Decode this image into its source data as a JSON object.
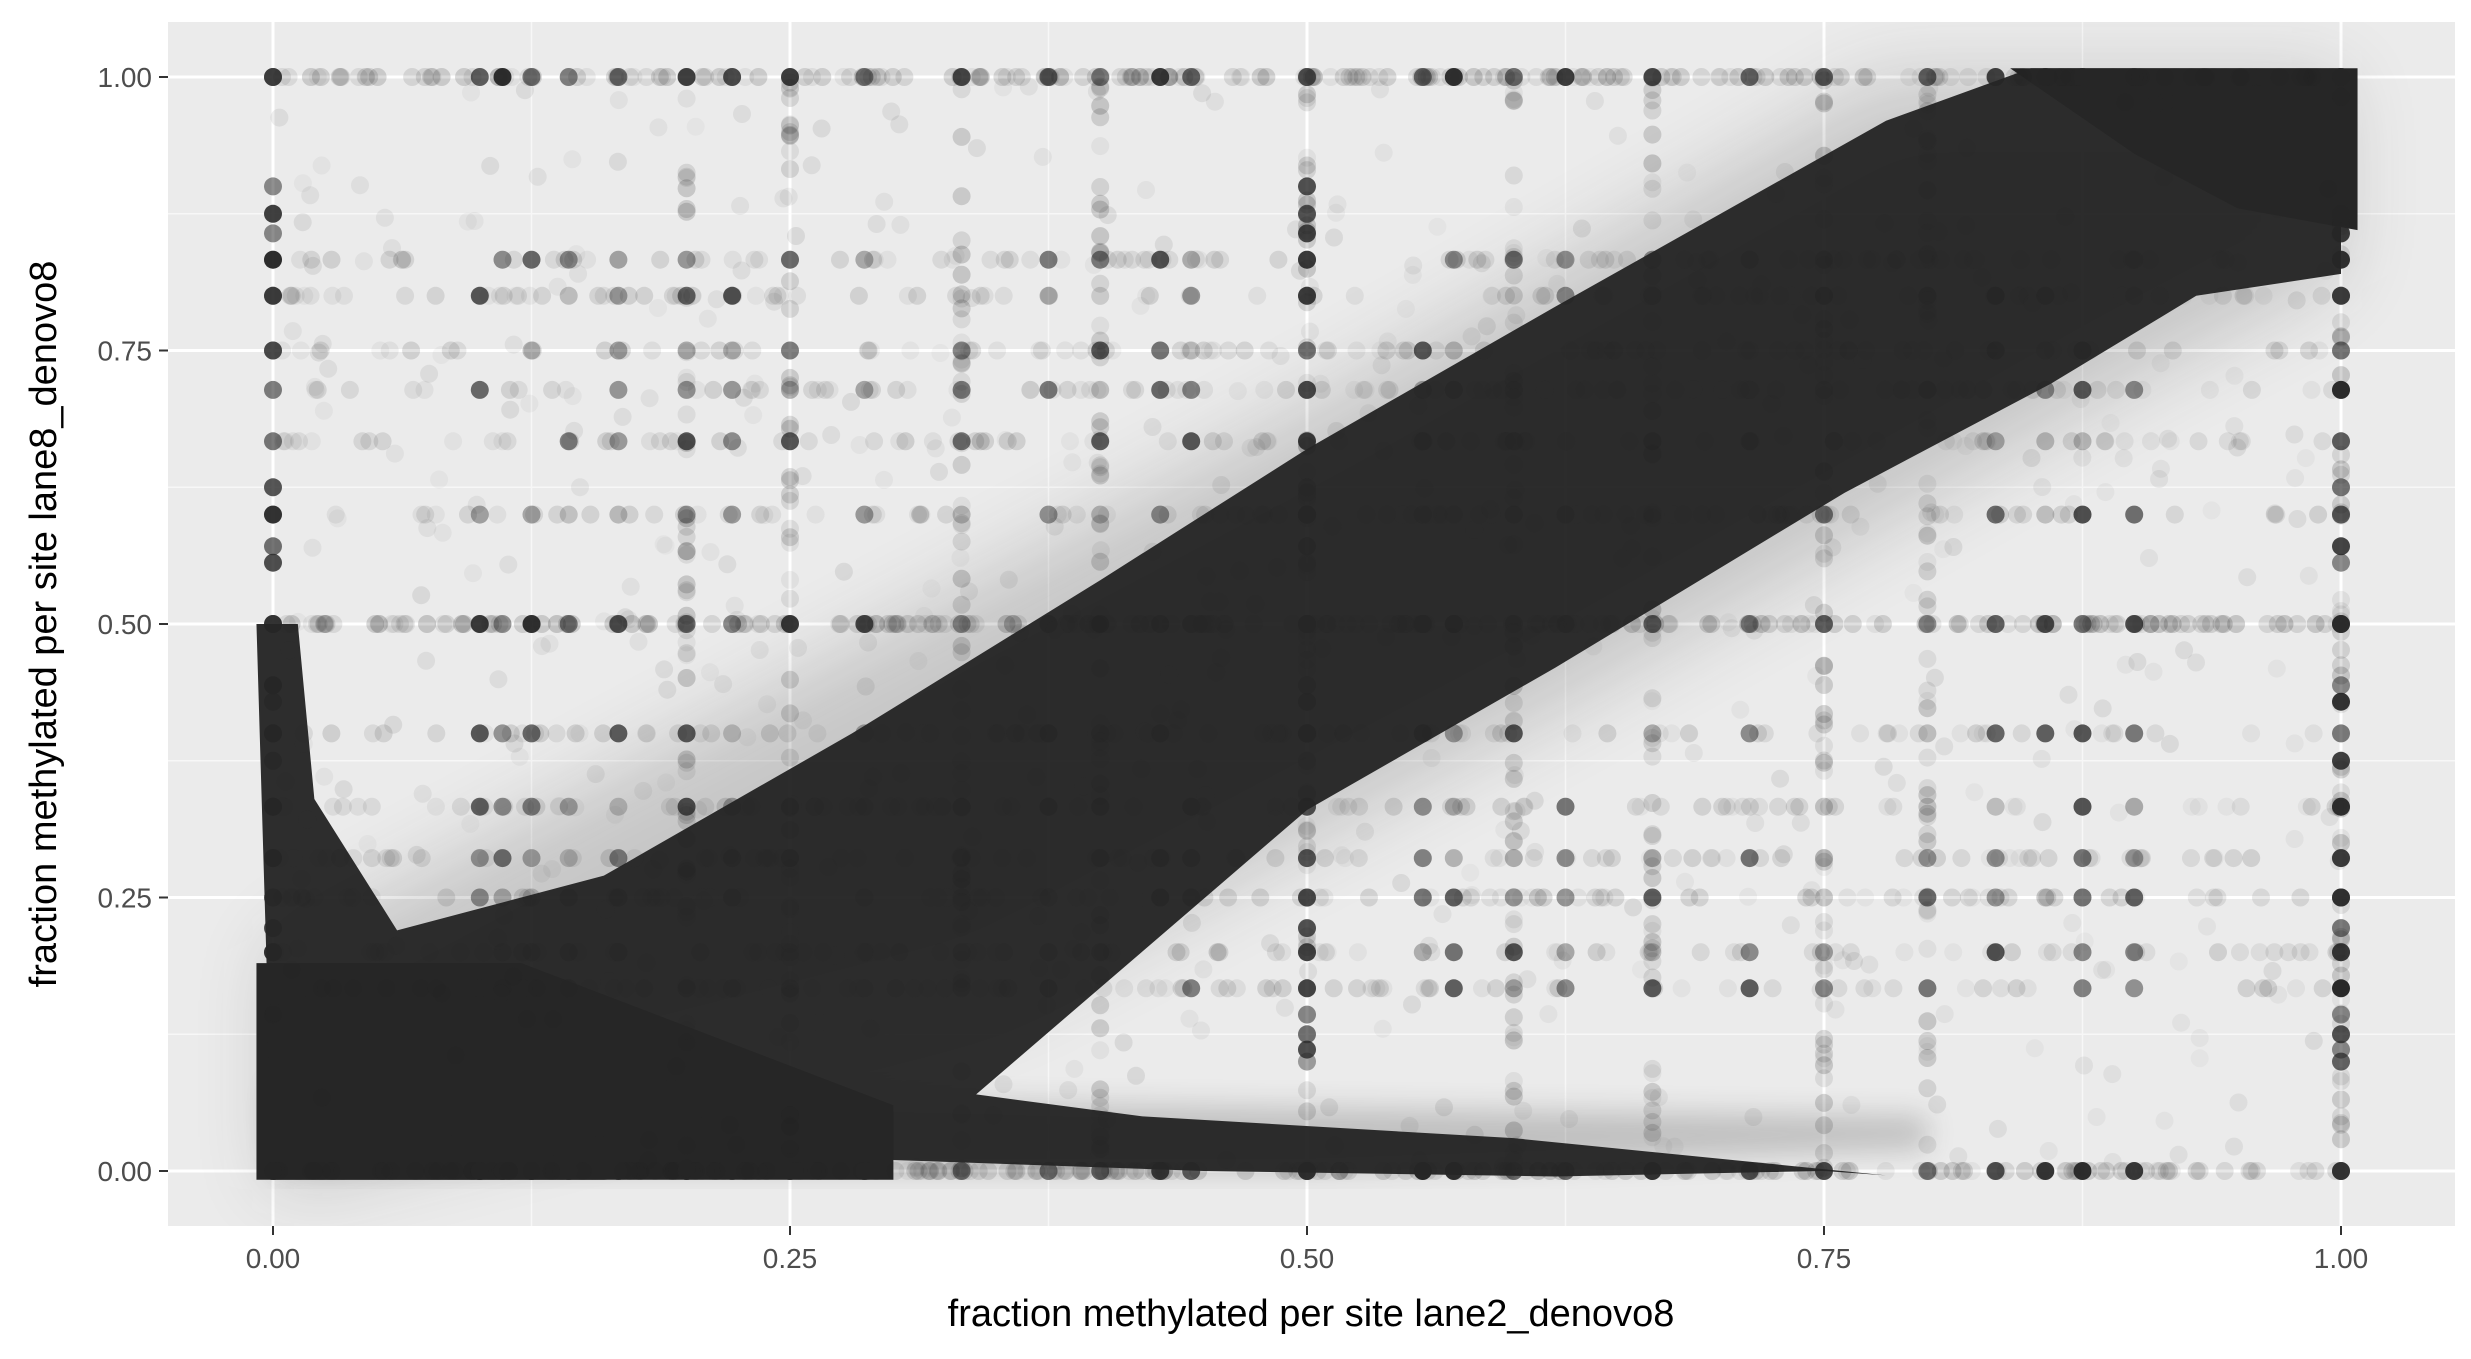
{
  "chart_data": {
    "type": "scatter",
    "title": "",
    "xlabel": "fraction methylated per site lane2_denovo8",
    "ylabel": "fraction methylated per site lane8_denovo8",
    "xlim": [
      -0.1,
      1.03
    ],
    "ylim": [
      -0.05,
      1.05
    ],
    "x_ticks": [
      0.0,
      0.25,
      0.5,
      0.75,
      1.0
    ],
    "x_tick_labels": [
      "0.00",
      "0.25",
      "0.50",
      "0.75",
      "1.00"
    ],
    "y_ticks": [
      0.0,
      0.25,
      0.5,
      0.75,
      1.0
    ],
    "y_tick_labels": [
      "0.00",
      "0.25",
      "0.50",
      "0.75",
      "1.00"
    ],
    "grid": true,
    "legend": "none",
    "point_color": "#262626",
    "point_alpha": "low (overplotted)",
    "panel_background": "#ebebeb",
    "grid_color": "#ffffff",
    "common_fractions": [
      0.0,
      0.1,
      0.111,
      0.125,
      0.143,
      0.167,
      0.2,
      0.222,
      0.25,
      0.286,
      0.333,
      0.375,
      0.4,
      0.429,
      0.444,
      0.5,
      0.556,
      0.571,
      0.6,
      0.625,
      0.667,
      0.714,
      0.75,
      0.8,
      0.833,
      0.857,
      0.875,
      0.9,
      1.0
    ],
    "diagonal_band": {
      "description": "dense concentration of points along y = x",
      "x": [
        0.0,
        0.25,
        0.5,
        0.75,
        1.0
      ],
      "y": [
        0.0,
        0.25,
        0.5,
        0.75,
        0.93
      ]
    },
    "dense_regions": [
      {
        "name": "low-low cluster",
        "x_range": [
          0.0,
          0.3
        ],
        "y_range": [
          0.0,
          0.15
        ]
      },
      {
        "name": "high-high cluster",
        "x_range": [
          0.8,
          1.0
        ],
        "y_range": [
          0.88,
          1.0
        ]
      },
      {
        "name": "x = 0 column",
        "x_range": [
          0.0,
          0.02
        ],
        "y_range": [
          0.0,
          0.5
        ]
      }
    ]
  }
}
